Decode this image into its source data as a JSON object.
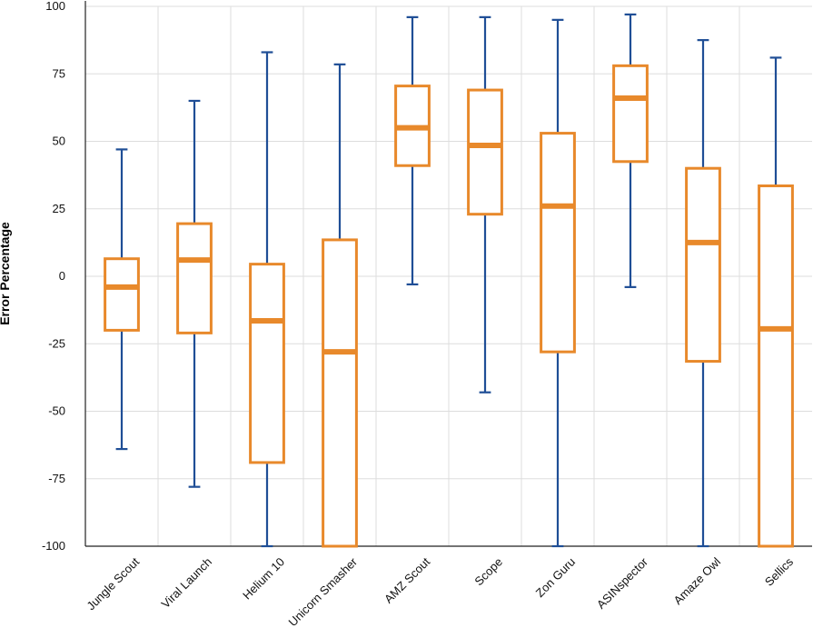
{
  "chart_data": {
    "type": "box",
    "title": "",
    "xlabel": "",
    "ylabel": "Error Percentage",
    "ylim": [
      -100,
      100
    ],
    "yticks": [
      100,
      75,
      50,
      25,
      0,
      -25,
      -50,
      -75,
      -100
    ],
    "grid": true,
    "colors": {
      "box": "#E8892B",
      "whisker": "#1F4E96",
      "grid": "#DDDDDD",
      "axis": "#222222"
    },
    "categories": [
      "Jungle Scout",
      "Viral Launch",
      "Helium 10",
      "Unicorn Smasher",
      "AMZ Scout",
      "Scope",
      "Zon Guru",
      "ASINspector",
      "Amaze Owl",
      "Sellics"
    ],
    "boxes": [
      {
        "min": -64,
        "q1": -20,
        "median": -4,
        "q3": 6.5,
        "max": 47
      },
      {
        "min": -78,
        "q1": -21,
        "median": 6,
        "q3": 19.5,
        "max": 65
      },
      {
        "min": -100,
        "q1": -69,
        "median": -16.5,
        "q3": 4.5,
        "max": 83
      },
      {
        "min": -100,
        "q1": -100,
        "median": -28,
        "q3": 13.5,
        "max": 78.5
      },
      {
        "min": -3,
        "q1": 41,
        "median": 55,
        "q3": 70.5,
        "max": 96
      },
      {
        "min": -43,
        "q1": 23,
        "median": 48.5,
        "q3": 69,
        "max": 96
      },
      {
        "min": -100,
        "q1": -28,
        "median": 26,
        "q3": 53,
        "max": 95
      },
      {
        "min": -4,
        "q1": 42.5,
        "median": 66,
        "q3": 78,
        "max": 97
      },
      {
        "min": -100,
        "q1": -31.5,
        "median": 12.5,
        "q3": 40,
        "max": 87.5
      },
      {
        "min": -100,
        "q1": -100,
        "median": -19.5,
        "q3": 33.5,
        "max": 81
      }
    ]
  }
}
